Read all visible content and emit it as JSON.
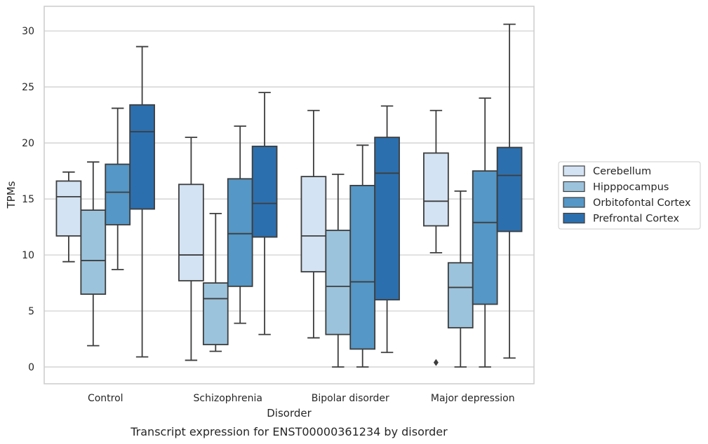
{
  "chart_data": {
    "type": "boxplot",
    "xlabel": "Disorder",
    "ylabel": "TPMs",
    "caption": "Transcript expression for ENST00000361234 by disorder",
    "ylim": [
      -1.5,
      32.2
    ],
    "yticks": [
      0,
      5,
      10,
      15,
      20,
      25,
      30
    ],
    "grid": true,
    "legend_position": "right",
    "categories": [
      "Control",
      "Schizophrenia",
      "Bipolar disorder",
      "Major depression"
    ],
    "series": [
      {
        "name": "Cerebellum",
        "color": "#d4e3f3",
        "boxes": [
          {
            "min": 9.4,
            "q1": 11.7,
            "median": 15.2,
            "q3": 16.6,
            "max": 17.4,
            "outliers": []
          },
          {
            "min": 0.6,
            "q1": 7.7,
            "median": 10.0,
            "q3": 16.3,
            "max": 20.5,
            "outliers": []
          },
          {
            "min": 2.6,
            "q1": 8.5,
            "median": 11.7,
            "q3": 17.0,
            "max": 22.9,
            "outliers": []
          },
          {
            "min": 10.2,
            "q1": 12.6,
            "median": 14.8,
            "q3": 19.1,
            "max": 22.9,
            "outliers": [
              0.4
            ]
          }
        ]
      },
      {
        "name": "Hipppocampus",
        "color": "#9cc3dc",
        "boxes": [
          {
            "min": 1.9,
            "q1": 6.5,
            "median": 9.5,
            "q3": 14.0,
            "max": 18.3,
            "outliers": []
          },
          {
            "min": 1.4,
            "q1": 2.0,
            "median": 6.1,
            "q3": 7.5,
            "max": 13.7,
            "outliers": []
          },
          {
            "min": 0.0,
            "q1": 2.9,
            "median": 7.2,
            "q3": 12.2,
            "max": 17.2,
            "outliers": []
          },
          {
            "min": 0.0,
            "q1": 3.5,
            "median": 7.1,
            "q3": 9.3,
            "max": 15.7,
            "outliers": []
          }
        ]
      },
      {
        "name": "Orbitofontal Cortex",
        "color": "#5597c6",
        "boxes": [
          {
            "min": 8.7,
            "q1": 12.7,
            "median": 15.6,
            "q3": 18.1,
            "max": 23.1,
            "outliers": []
          },
          {
            "min": 3.9,
            "q1": 7.2,
            "median": 11.9,
            "q3": 16.8,
            "max": 21.5,
            "outliers": []
          },
          {
            "min": 0.0,
            "q1": 1.6,
            "median": 7.6,
            "q3": 16.2,
            "max": 19.8,
            "outliers": []
          },
          {
            "min": 0.0,
            "q1": 5.6,
            "median": 12.9,
            "q3": 17.5,
            "max": 24.0,
            "outliers": []
          }
        ]
      },
      {
        "name": "Prefrontal Cortex",
        "color": "#2c6fae",
        "boxes": [
          {
            "min": 0.9,
            "q1": 14.1,
            "median": 21.0,
            "q3": 23.4,
            "max": 28.6,
            "outliers": []
          },
          {
            "min": 2.9,
            "q1": 11.6,
            "median": 14.6,
            "q3": 19.7,
            "max": 24.5,
            "outliers": []
          },
          {
            "min": 1.3,
            "q1": 6.0,
            "median": 17.3,
            "q3": 20.5,
            "max": 23.3,
            "outliers": []
          },
          {
            "min": 0.8,
            "q1": 12.1,
            "median": 17.1,
            "q3": 19.6,
            "max": 30.6,
            "outliers": []
          }
        ]
      }
    ]
  }
}
